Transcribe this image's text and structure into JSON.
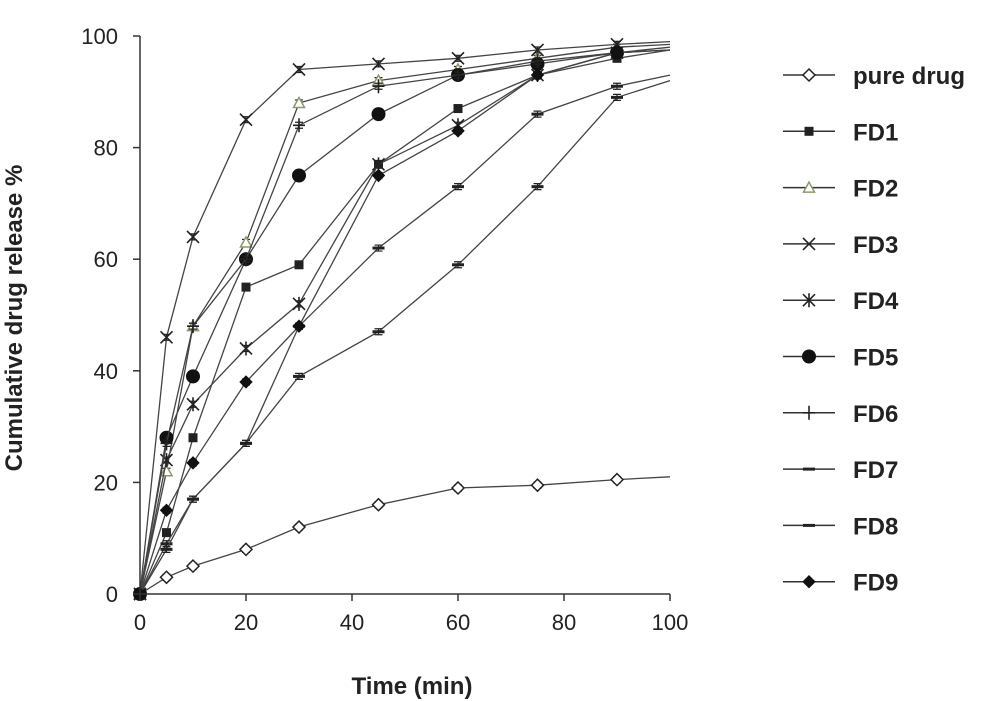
{
  "chart_data": {
    "type": "line",
    "title": "",
    "xlabel": "Time (min)",
    "ylabel": "Cumulative drug release %",
    "xlim": [
      0,
      100
    ],
    "ylim": [
      0,
      100
    ],
    "xticks": [
      "0",
      "20",
      "40",
      "60",
      "80",
      "100"
    ],
    "yticks": [
      "0",
      "20",
      "40",
      "60",
      "80",
      "100"
    ],
    "x": [
      0,
      5,
      10,
      20,
      30,
      45,
      60,
      75,
      90,
      100
    ],
    "legend_position": "right",
    "series": [
      {
        "name": "pure drug",
        "marker": "diamond-open",
        "color": "#222222",
        "values": [
          0,
          3,
          5,
          8,
          12,
          16,
          19,
          19.5,
          20.5,
          21
        ]
      },
      {
        "name": "FD1",
        "marker": "square",
        "color": "#222222",
        "values": [
          0,
          11,
          28,
          55,
          59,
          77,
          87,
          93,
          96,
          97.5
        ]
      },
      {
        "name": "FD2",
        "marker": "triangle-open",
        "color": "#8a9a6a",
        "values": [
          0,
          22,
          48,
          63,
          88,
          92,
          94,
          96,
          98,
          98.5
        ]
      },
      {
        "name": "FD3",
        "marker": "x",
        "color": "#222222",
        "values": [
          0,
          46,
          64,
          85,
          94,
          95,
          96,
          97.5,
          98.5,
          99
        ]
      },
      {
        "name": "FD4",
        "marker": "asterisk",
        "color": "#222222",
        "values": [
          0,
          24,
          34,
          44,
          52,
          77,
          84,
          93,
          97,
          97.5
        ]
      },
      {
        "name": "FD5",
        "marker": "circle",
        "color": "#111111",
        "values": [
          0,
          28,
          39,
          60,
          75,
          86,
          93,
          95,
          97,
          97.5
        ]
      },
      {
        "name": "FD6",
        "marker": "plus",
        "color": "#222222",
        "values": [
          0,
          27,
          48,
          60,
          84,
          91,
          93,
          95.5,
          97,
          98
        ]
      },
      {
        "name": "FD7",
        "marker": "dash",
        "color": "#222222",
        "values": [
          0,
          9,
          17,
          27,
          39,
          47,
          59,
          73,
          89,
          92
        ]
      },
      {
        "name": "FD8",
        "marker": "dash",
        "color": "#222222",
        "values": [
          0,
          8,
          17,
          27,
          48,
          62,
          73,
          86,
          91,
          93
        ]
      },
      {
        "name": "FD9",
        "marker": "diamond",
        "color": "#111111",
        "values": [
          0,
          15,
          23.5,
          38,
          48,
          75,
          83,
          93,
          97,
          97.5
        ]
      }
    ]
  }
}
